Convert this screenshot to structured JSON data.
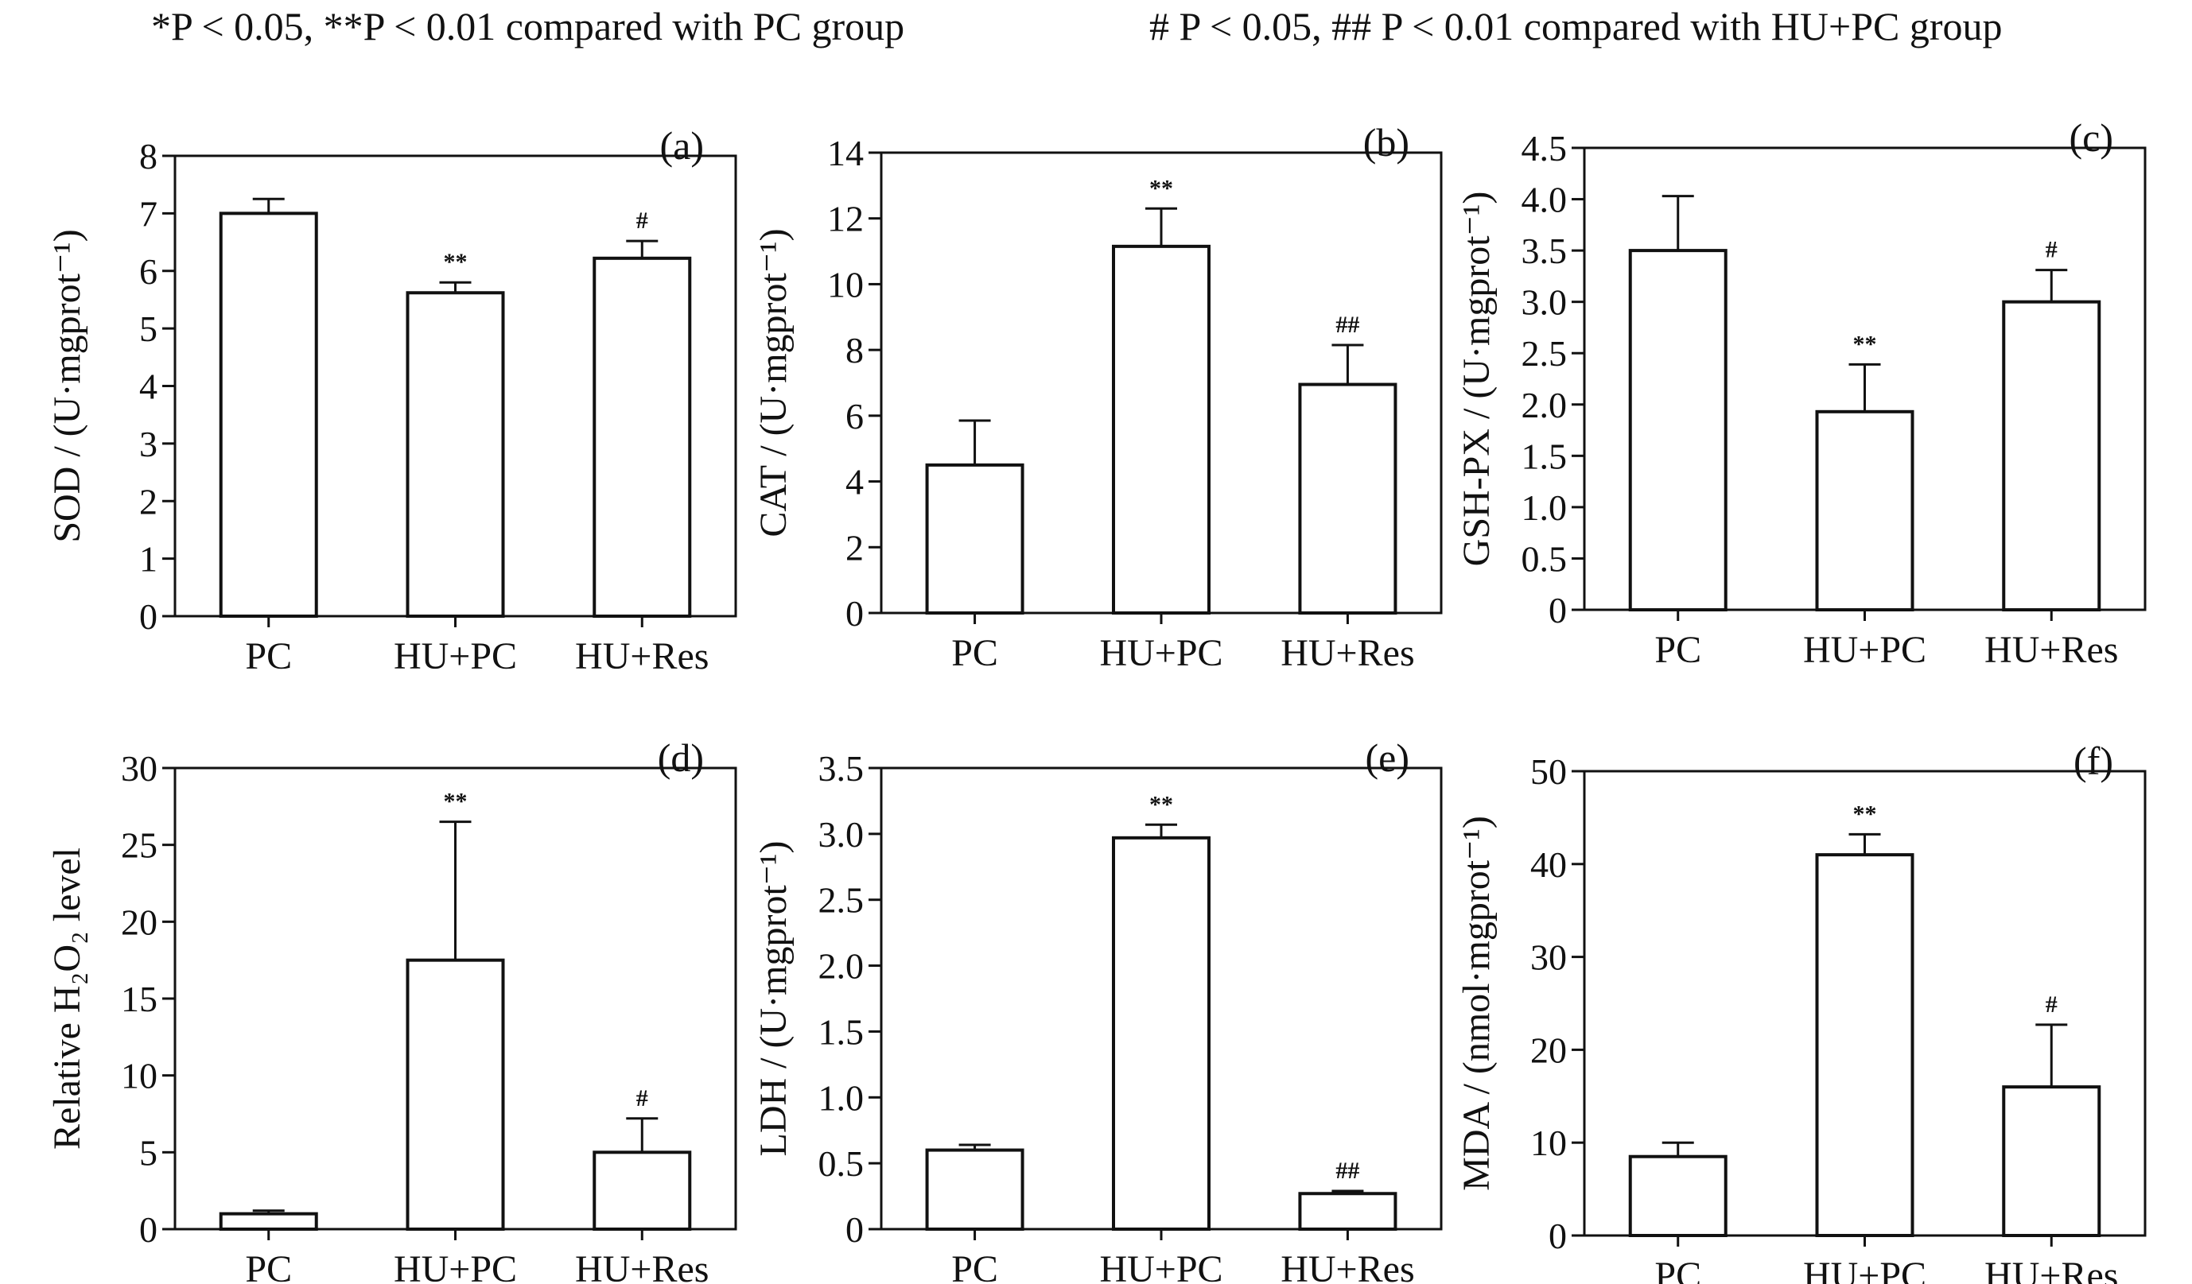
{
  "legend": {
    "left": "*P < 0.05,  **P < 0.01 compared with PC group",
    "right": "# P < 0.05,  ## P < 0.01 compared with HU+PC group"
  },
  "chart_data": [
    {
      "type": "bar",
      "panel": "(a)",
      "ylabel": "SOD / (U·mgprot⁻¹)",
      "categories": [
        "PC",
        "HU+PC",
        "HU+Res"
      ],
      "values": [
        7.0,
        5.62,
        6.22
      ],
      "errors": [
        0.25,
        0.18,
        0.3
      ],
      "annotations": [
        "",
        "**",
        "#"
      ],
      "ylim": [
        0,
        8
      ],
      "ticks": [
        "0",
        "1",
        "2",
        "3",
        "4",
        "5",
        "6",
        "7",
        "8"
      ]
    },
    {
      "type": "bar",
      "panel": "(b)",
      "ylabel": "CAT / (U·mgprot⁻¹)",
      "categories": [
        "PC",
        "HU+PC",
        "HU+Res"
      ],
      "values": [
        4.5,
        11.15,
        6.95
      ],
      "errors": [
        1.35,
        1.15,
        1.2
      ],
      "annotations": [
        "",
        "**",
        "##"
      ],
      "ylim": [
        0,
        14
      ],
      "ticks": [
        "0",
        "2",
        "4",
        "6",
        "8",
        "10",
        "12",
        "14"
      ]
    },
    {
      "type": "bar",
      "panel": "(c)",
      "ylabel": "GSH-PX / (U·mgprot⁻¹)",
      "categories": [
        "PC",
        "HU+PC",
        "HU+Res"
      ],
      "values": [
        3.5,
        1.93,
        3.0
      ],
      "errors": [
        0.53,
        0.46,
        0.31
      ],
      "annotations": [
        "",
        "**",
        "#"
      ],
      "ylim": [
        0,
        4.5
      ],
      "ticks": [
        "0",
        "0.5",
        "1.0",
        "1.5",
        "2.0",
        "2.5",
        "3.0",
        "3.5",
        "4.0",
        "4.5"
      ]
    },
    {
      "type": "bar",
      "panel": "(d)",
      "ylabel": "Relative H₂O₂ level",
      "categories": [
        "PC",
        "HU+PC",
        "HU+Res"
      ],
      "values": [
        1.0,
        17.5,
        5.0
      ],
      "errors": [
        0.2,
        9.0,
        2.2
      ],
      "annotations": [
        "",
        "**",
        "#"
      ],
      "ylim": [
        0,
        30
      ],
      "ticks": [
        "0",
        "5",
        "10",
        "15",
        "20",
        "25",
        "30"
      ]
    },
    {
      "type": "bar",
      "panel": "(e)",
      "ylabel": "LDH / (U·mgprot⁻¹)",
      "categories": [
        "PC",
        "HU+PC",
        "HU+Res"
      ],
      "values": [
        0.6,
        2.97,
        0.27
      ],
      "errors": [
        0.04,
        0.1,
        0.02
      ],
      "annotations": [
        "",
        "**",
        "##"
      ],
      "ylim": [
        0,
        3.5
      ],
      "ticks": [
        "0",
        "0.5",
        "1.0",
        "1.5",
        "2.0",
        "2.5",
        "3.0",
        "3.5"
      ]
    },
    {
      "type": "bar",
      "panel": "(f)",
      "ylabel": "MDA / (nmol·mgprot⁻¹)",
      "categories": [
        "PC",
        "HU+PC",
        "HU+Res"
      ],
      "values": [
        8.5,
        41.0,
        16.0
      ],
      "errors": [
        1.5,
        2.2,
        6.7
      ],
      "annotations": [
        "",
        "**",
        "#"
      ],
      "ylim": [
        0,
        50
      ],
      "ticks": [
        "0",
        "10",
        "20",
        "30",
        "40",
        "50"
      ]
    }
  ]
}
